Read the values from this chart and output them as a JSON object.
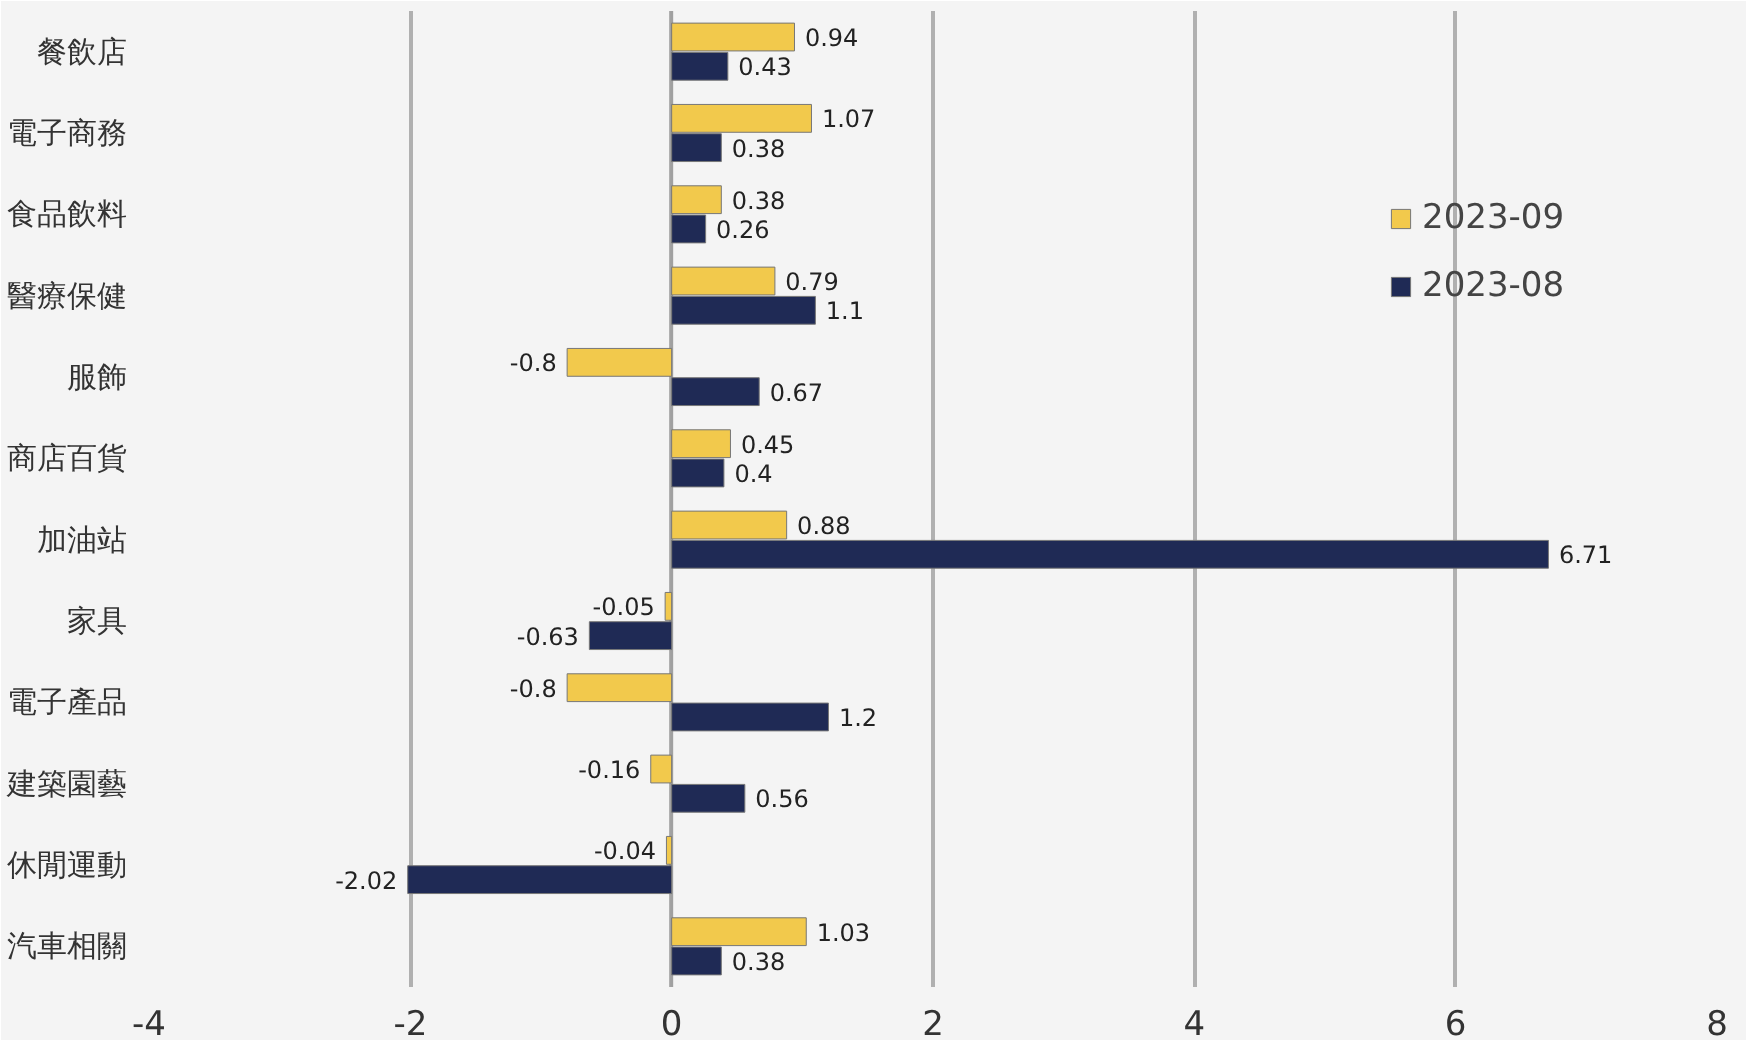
{
  "chart_data": {
    "type": "bar",
    "orientation": "horizontal",
    "categories": [
      "餐飲店",
      "電子商務",
      "食品飲料",
      "醫療保健",
      "服飾",
      "商店百貨",
      "加油站",
      "家具",
      "電子產品",
      "建築園藝",
      "休閒運動",
      "汽車相關"
    ],
    "series": [
      {
        "name": "2023-09",
        "color": "#f2c94c",
        "values": [
          0.94,
          1.07,
          0.38,
          0.79,
          -0.8,
          0.45,
          0.88,
          -0.05,
          -0.8,
          -0.16,
          -0.04,
          1.03
        ]
      },
      {
        "name": "2023-08",
        "color": "#1f2a55",
        "values": [
          0.43,
          0.38,
          0.26,
          1.1,
          0.67,
          0.4,
          6.71,
          -0.63,
          1.2,
          0.56,
          -2.02,
          0.38
        ]
      }
    ],
    "xlim": [
      -4,
      8
    ],
    "xticks": [
      -4,
      -2,
      0,
      2,
      4,
      6,
      8
    ],
    "grid": "x",
    "legend": "right",
    "data_labels": true
  }
}
